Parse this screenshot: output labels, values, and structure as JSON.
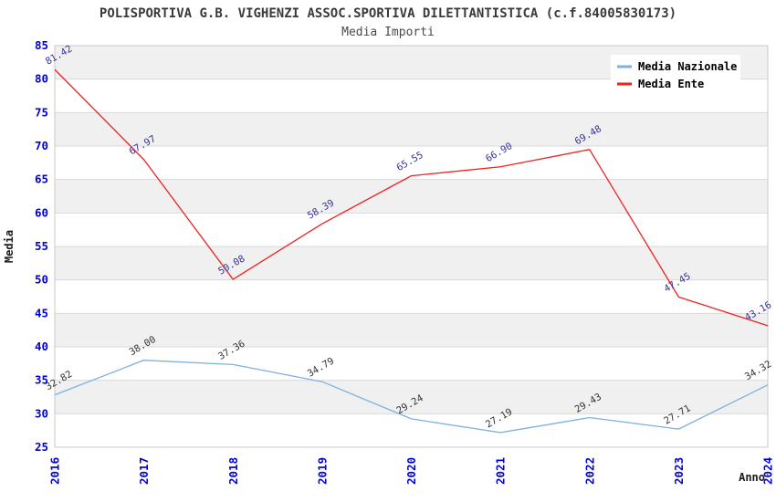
{
  "chart_data": {
    "type": "line",
    "title": "POLISPORTIVA G.B. VIGHENZI ASSOC.SPORTIVA DILETTANTISTICA (c.f.84005830173)",
    "subtitle": "Media Importi",
    "xlabel": "Anno",
    "ylabel": "Media",
    "x": [
      2016,
      2017,
      2018,
      2019,
      2020,
      2021,
      2022,
      2023,
      2024
    ],
    "series": [
      {
        "name": "Media Nazionale",
        "color": "#7db1e0",
        "label_color": "#333333",
        "values": [
          32.82,
          38.0,
          37.36,
          34.79,
          29.24,
          27.19,
          29.43,
          27.71,
          34.32
        ]
      },
      {
        "name": "Media Ente",
        "color": "#ee2222",
        "label_color": "#333399",
        "values": [
          81.42,
          67.97,
          50.08,
          58.39,
          65.55,
          66.9,
          69.48,
          47.45,
          43.16
        ]
      }
    ],
    "ylim": [
      25,
      85
    ],
    "ytick_step": 5,
    "grid": true,
    "banded_background": true,
    "band_color": "#f0f0f0",
    "gridline_color": "#d9d9d9",
    "plot_border_color": "#c9c9c9",
    "axis_tick_color": "#0000dd",
    "legend_position": "top-right",
    "legend_background": "#ffffff"
  }
}
